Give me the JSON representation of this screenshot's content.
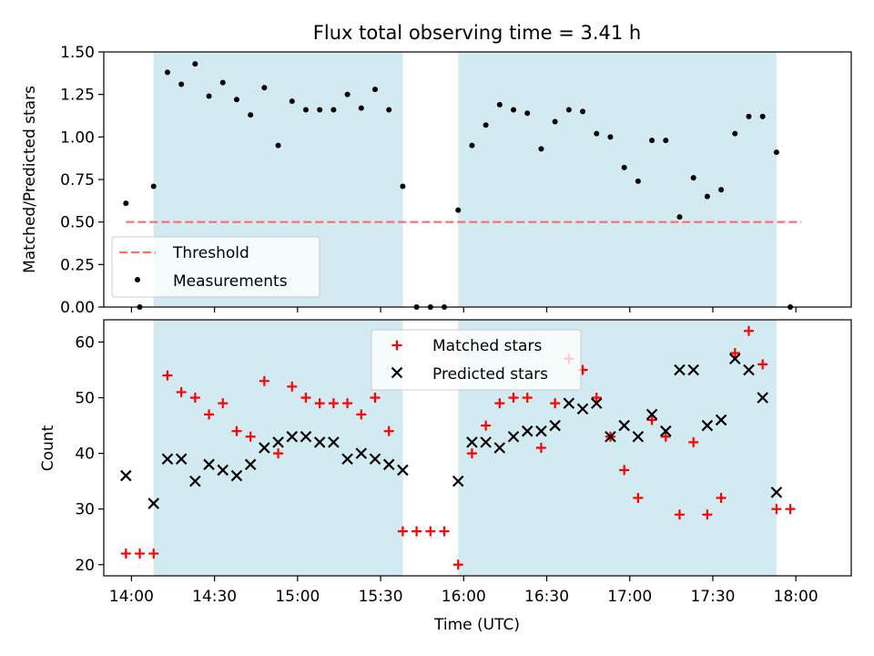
{
  "figure_title": "Flux total observing time = 3.41 h",
  "colors": {
    "highlight": "#add8e6",
    "threshold": "#ff6b6b",
    "matched": "#ff0000",
    "predicted": "#000000",
    "measurement": "#000000"
  },
  "chart_data": [
    {
      "type": "scatter",
      "title": "Flux total observing time = 3.41 h",
      "ylabel": "Matched/Predicted stars",
      "xlabel": "",
      "xlim": [
        -10,
        260
      ],
      "ylim": [
        0,
        1.5
      ],
      "x_ticks": [
        0,
        30,
        60,
        90,
        120,
        150,
        180,
        210,
        240
      ],
      "y_ticks": [
        0.0,
        0.25,
        0.5,
        0.75,
        1.0,
        1.25,
        1.5
      ],
      "y_tick_labels": [
        "0.00",
        "0.25",
        "0.50",
        "0.75",
        "1.00",
        "1.25",
        "1.50"
      ],
      "shaded_intervals": [
        [
          8,
          98
        ],
        [
          118,
          233
        ]
      ],
      "threshold": {
        "label": "Threshold",
        "value": 0.5,
        "x_range": [
          -2,
          242
        ]
      },
      "series": [
        {
          "name": "Measurements",
          "x": [
            -2,
            3,
            8,
            13,
            18,
            23,
            28,
            33,
            38,
            43,
            48,
            53,
            58,
            63,
            68,
            73,
            78,
            83,
            88,
            93,
            98,
            103,
            108,
            113,
            118,
            123,
            128,
            133,
            138,
            143,
            148,
            153,
            158,
            163,
            168,
            173,
            178,
            183,
            188,
            193,
            198,
            203,
            208,
            213,
            218,
            223,
            228,
            233,
            238
          ],
          "values": [
            0.61,
            0.0,
            0.71,
            1.38,
            1.31,
            1.43,
            1.24,
            1.32,
            1.22,
            1.13,
            1.29,
            0.95,
            1.21,
            1.16,
            1.16,
            1.16,
            1.25,
            1.17,
            1.28,
            1.16,
            0.71,
            0.0,
            0.0,
            0.0,
            0.57,
            0.95,
            1.07,
            1.19,
            1.16,
            1.14,
            0.93,
            1.09,
            1.16,
            1.15,
            1.02,
            1.0,
            0.82,
            0.74,
            0.98,
            0.98,
            0.53,
            0.76,
            0.65,
            0.69,
            1.02,
            1.12,
            1.12,
            0.91,
            0.0
          ]
        }
      ],
      "legend": {
        "placement": "lower-left",
        "entries": [
          "Threshold",
          "Measurements"
        ]
      }
    },
    {
      "type": "scatter",
      "title": "",
      "ylabel": "Count",
      "xlabel": "Time (UTC)",
      "xlim": [
        -10,
        260
      ],
      "ylim": [
        18,
        64
      ],
      "x_ticks": [
        0,
        30,
        60,
        90,
        120,
        150,
        180,
        210,
        240
      ],
      "x_tick_labels": [
        "14:00",
        "14:30",
        "15:00",
        "15:30",
        "16:00",
        "16:30",
        "17:00",
        "17:30",
        "18:00"
      ],
      "y_ticks": [
        20,
        30,
        40,
        50,
        60
      ],
      "y_tick_labels": [
        "20",
        "30",
        "40",
        "50",
        "60"
      ],
      "shaded_intervals": [
        [
          8,
          98
        ],
        [
          118,
          233
        ]
      ],
      "series": [
        {
          "name": "Matched stars",
          "marker": "plus",
          "x": [
            -2,
            3,
            8,
            13,
            18,
            23,
            28,
            33,
            38,
            43,
            48,
            53,
            58,
            63,
            68,
            73,
            78,
            83,
            88,
            93,
            98,
            103,
            108,
            113,
            118,
            123,
            128,
            133,
            138,
            143,
            148,
            153,
            158,
            163,
            168,
            173,
            178,
            183,
            188,
            193,
            198,
            203,
            208,
            213,
            218,
            223,
            228,
            233,
            238
          ],
          "values": [
            22,
            22,
            22,
            54,
            51,
            50,
            47,
            49,
            44,
            43,
            53,
            40,
            52,
            50,
            49,
            49,
            49,
            47,
            50,
            44,
            26,
            26,
            26,
            26,
            20,
            40,
            45,
            49,
            50,
            50,
            41,
            49,
            57,
            55,
            50,
            43,
            37,
            32,
            46,
            43,
            29,
            42,
            29,
            32,
            58,
            62,
            56,
            30,
            30
          ]
        },
        {
          "name": "Predicted stars",
          "marker": "x",
          "x": [
            -2,
            8,
            13,
            18,
            23,
            28,
            33,
            38,
            43,
            48,
            53,
            58,
            63,
            68,
            73,
            78,
            83,
            88,
            93,
            98,
            118,
            123,
            128,
            133,
            138,
            143,
            148,
            153,
            158,
            163,
            168,
            173,
            178,
            183,
            188,
            193,
            198,
            203,
            208,
            213,
            218,
            223,
            228,
            233
          ],
          "values": [
            36,
            31,
            39,
            39,
            35,
            38,
            37,
            36,
            38,
            41,
            42,
            43,
            43,
            42,
            42,
            39,
            40,
            39,
            38,
            37,
            35,
            42,
            42,
            41,
            43,
            44,
            44,
            45,
            49,
            48,
            49,
            43,
            45,
            43,
            47,
            44,
            55,
            55,
            45,
            46,
            57,
            55,
            50,
            33
          ]
        }
      ],
      "legend": {
        "placement": "top-center",
        "entries": [
          "Matched stars",
          "Predicted stars"
        ]
      }
    }
  ]
}
